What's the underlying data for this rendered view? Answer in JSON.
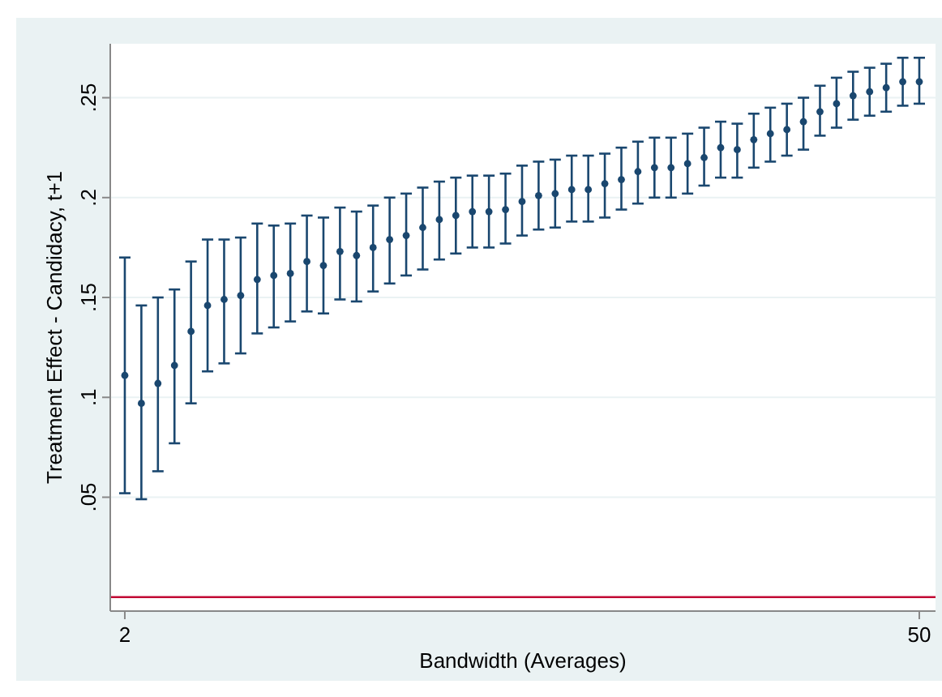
{
  "chart_data": {
    "type": "scatter",
    "xlabel": "Bandwidth (Averages)",
    "ylabel": "Treatment Effect - Candidacy, t+1",
    "x": [
      2,
      3,
      4,
      5,
      6,
      7,
      8,
      9,
      10,
      11,
      12,
      13,
      14,
      15,
      16,
      17,
      18,
      19,
      20,
      21,
      22,
      23,
      24,
      25,
      26,
      27,
      28,
      29,
      30,
      31,
      32,
      33,
      34,
      35,
      36,
      37,
      38,
      39,
      40,
      41,
      42,
      43,
      44,
      45,
      46,
      47,
      48,
      49,
      50
    ],
    "series": [
      {
        "color": "#1a476f",
        "values": [
          0.111,
          0.097,
          0.107,
          0.116,
          0.133,
          0.146,
          0.149,
          0.151,
          0.159,
          0.161,
          0.162,
          0.168,
          0.166,
          0.173,
          0.171,
          0.175,
          0.179,
          0.181,
          0.185,
          0.189,
          0.191,
          0.193,
          0.193,
          0.194,
          0.198,
          0.201,
          0.202,
          0.204,
          0.204,
          0.207,
          0.209,
          0.213,
          0.215,
          0.215,
          0.217,
          0.22,
          0.225,
          0.224,
          0.229,
          0.232,
          0.234,
          0.238,
          0.243,
          0.247,
          0.251,
          0.253,
          0.255,
          0.258,
          0.258
        ],
        "errors": [
          [
            0.052,
            0.17
          ],
          [
            0.049,
            0.146
          ],
          [
            0.063,
            0.15
          ],
          [
            0.077,
            0.154
          ],
          [
            0.097,
            0.168
          ],
          [
            0.113,
            0.179
          ],
          [
            0.117,
            0.179
          ],
          [
            0.122,
            0.18
          ],
          [
            0.132,
            0.187
          ],
          [
            0.135,
            0.186
          ],
          [
            0.138,
            0.187
          ],
          [
            0.143,
            0.191
          ],
          [
            0.142,
            0.19
          ],
          [
            0.149,
            0.195
          ],
          [
            0.148,
            0.193
          ],
          [
            0.153,
            0.196
          ],
          [
            0.157,
            0.2
          ],
          [
            0.161,
            0.202
          ],
          [
            0.164,
            0.205
          ],
          [
            0.169,
            0.208
          ],
          [
            0.172,
            0.21
          ],
          [
            0.175,
            0.211
          ],
          [
            0.175,
            0.211
          ],
          [
            0.177,
            0.212
          ],
          [
            0.181,
            0.216
          ],
          [
            0.184,
            0.218
          ],
          [
            0.185,
            0.219
          ],
          [
            0.188,
            0.221
          ],
          [
            0.188,
            0.221
          ],
          [
            0.19,
            0.222
          ],
          [
            0.194,
            0.225
          ],
          [
            0.197,
            0.228
          ],
          [
            0.2,
            0.23
          ],
          [
            0.2,
            0.23
          ],
          [
            0.202,
            0.232
          ],
          [
            0.206,
            0.235
          ],
          [
            0.21,
            0.238
          ],
          [
            0.21,
            0.237
          ],
          [
            0.215,
            0.242
          ],
          [
            0.218,
            0.245
          ],
          [
            0.221,
            0.247
          ],
          [
            0.224,
            0.25
          ],
          [
            0.231,
            0.256
          ],
          [
            0.235,
            0.26
          ],
          [
            0.239,
            0.263
          ],
          [
            0.241,
            0.265
          ],
          [
            0.243,
            0.267
          ],
          [
            0.246,
            0.27
          ],
          [
            0.247,
            0.27
          ]
        ]
      }
    ],
    "xlim": [
      1.12,
      50.98
    ],
    "xticks": [
      2,
      50
    ],
    "ylim": [
      -0.007,
      0.277
    ],
    "yticks": [
      {
        "value": 0.05,
        "label": ".05"
      },
      {
        "value": 0.1,
        "label": ".1"
      },
      {
        "value": 0.15,
        "label": ".15"
      },
      {
        "value": 0.2,
        "label": ".2"
      },
      {
        "value": 0.25,
        "label": ".25"
      }
    ],
    "grid": "y",
    "marker": "circle",
    "ref_lines": [
      {
        "axis": "y",
        "value": 0,
        "color": "#c10534"
      }
    ]
  }
}
